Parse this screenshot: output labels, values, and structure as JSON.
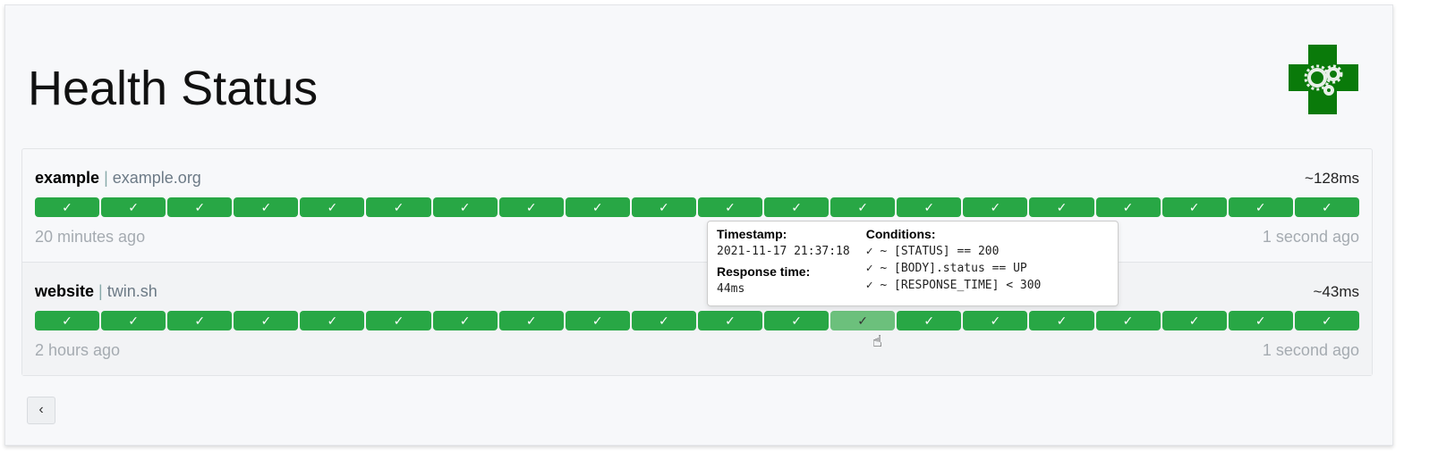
{
  "page": {
    "title": "Health Status",
    "back_label": "‹"
  },
  "colors": {
    "success": "#28a745",
    "success_hover": "#6cc07c",
    "logo": "#0a7a0a"
  },
  "services": [
    {
      "name": "example",
      "host": "example.org",
      "avg_response": "~128ms",
      "oldest": "20 minutes ago",
      "newest": "1 second ago",
      "results": [
        "✓",
        "✓",
        "✓",
        "✓",
        "✓",
        "✓",
        "✓",
        "✓",
        "✓",
        "✓",
        "✓",
        "✓",
        "✓",
        "✓",
        "✓",
        "✓",
        "✓",
        "✓",
        "✓",
        "✓"
      ]
    },
    {
      "name": "website",
      "host": "twin.sh",
      "avg_response": "~43ms",
      "oldest": "2 hours ago",
      "newest": "1 second ago",
      "results": [
        "✓",
        "✓",
        "✓",
        "✓",
        "✓",
        "✓",
        "✓",
        "✓",
        "✓",
        "✓",
        "✓",
        "✓",
        "✓",
        "✓",
        "✓",
        "✓",
        "✓",
        "✓",
        "✓",
        "✓"
      ],
      "hovered_index": 12
    }
  ],
  "tooltip": {
    "timestamp_label": "Timestamp:",
    "timestamp": "2021-11-17 21:37:18",
    "response_label": "Response time:",
    "response": "44ms",
    "conditions_label": "Conditions:",
    "conditions": [
      "✓ ~ [STATUS] == 200",
      "✓ ~ [BODY].status == UP",
      "✓ ~ [RESPONSE_TIME] < 300"
    ]
  }
}
